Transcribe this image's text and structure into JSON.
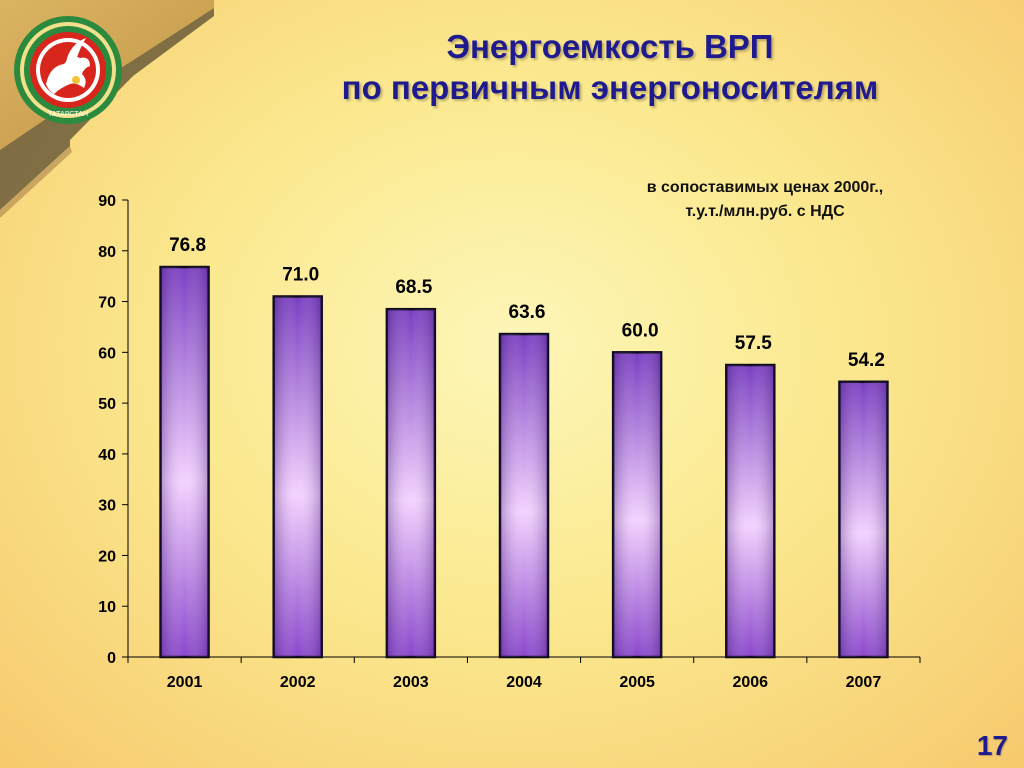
{
  "slide": {
    "title_line1": "Энергоемкость ВРП",
    "title_line2": "по первичным энергоносителям",
    "unit_line1": "в сопоставимых ценах 2000г.,",
    "unit_line2": "т.у.т./млн.руб. с НДС",
    "page_number": "17",
    "logo_text": "ТАТАРСТАН"
  },
  "colors": {
    "title": "#1f1b8f",
    "bar_dark": "#7a3ec2",
    "bar_light": "#f4d2ff",
    "bar_outline": "#0d0a1e"
  },
  "chart_data": {
    "type": "bar",
    "categories": [
      "2001",
      "2002",
      "2003",
      "2004",
      "2005",
      "2006",
      "2007"
    ],
    "values": [
      76.8,
      71.0,
      68.5,
      63.6,
      60.0,
      57.5,
      54.2
    ],
    "value_labels": [
      "76.8",
      "71.0",
      "68.5",
      "63.6",
      "60.0",
      "57.5",
      "54.2"
    ],
    "y_ticks": [
      "0",
      "10",
      "20",
      "30",
      "40",
      "50",
      "60",
      "70",
      "80",
      "90"
    ],
    "ylim": [
      0,
      90
    ],
    "xlabel": "",
    "ylabel": "",
    "grid": false,
    "legend": "none"
  }
}
